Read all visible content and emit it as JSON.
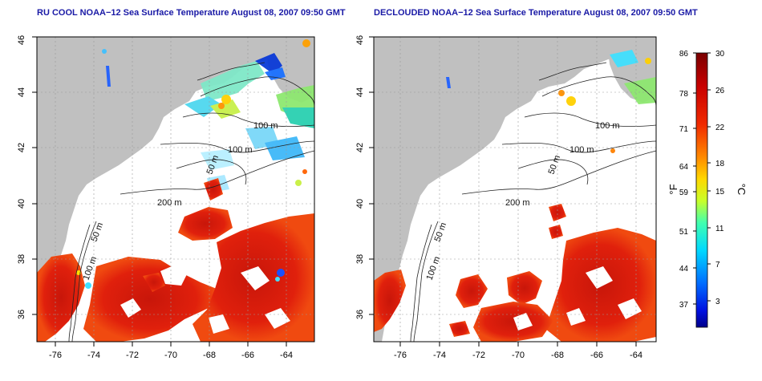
{
  "panels": [
    {
      "title": "RU COOL NOAA−12 Sea Surface Temperature August 08, 2007 09:50 GMT",
      "clouds": "raw"
    },
    {
      "title": "DECLOUDED NOAA−12 Sea Surface Temperature August 08, 2007 09:50 GMT",
      "clouds": "declouded"
    }
  ],
  "axes": {
    "lon_ticks": [
      "-76",
      "-74",
      "-72",
      "-70",
      "-68",
      "-66",
      "-64"
    ],
    "lat_ticks": [
      "36",
      "38",
      "40",
      "42",
      "44",
      "46"
    ],
    "lon_range": [
      -77.2,
      -63.2
    ],
    "lat_range": [
      35.0,
      46.0
    ]
  },
  "isobaths": [
    "100 m",
    "100 m",
    "50 m",
    "200 m",
    "50 m",
    "100 m"
  ],
  "colorbar": {
    "fahrenheit_label": "°F",
    "celsius_label": "°C",
    "fahrenheit_ticks": [
      "86",
      "78",
      "71",
      "64",
      "59",
      "51",
      "44",
      "37"
    ],
    "celsius_ticks": [
      "30",
      "26",
      "22",
      "18",
      "15",
      "11",
      "7",
      "3"
    ],
    "range_c": [
      0,
      30
    ]
  },
  "colors": {
    "land": "#c0c0c0",
    "cloud": "#ffffff",
    "title": "#1a1aa6",
    "warm": "#e01a0c",
    "grid": "#9a9a9a"
  }
}
